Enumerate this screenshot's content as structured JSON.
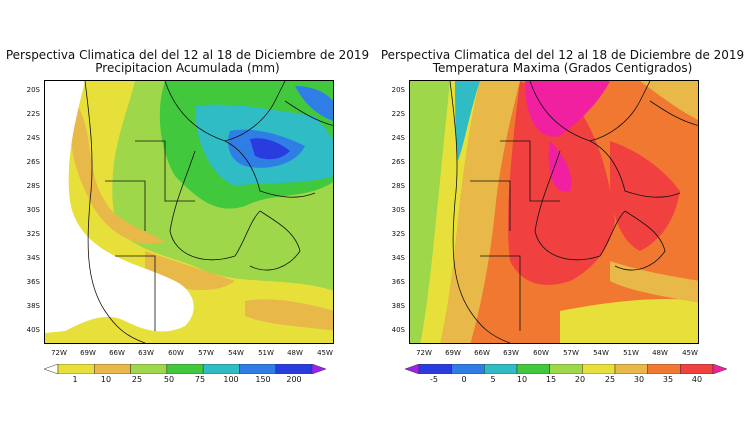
{
  "maps": [
    {
      "id": "precip",
      "title_line1": "Perspectiva Climatica del  del 12 al 18 de Diciembre de 2019",
      "title_line2": "Precipitacion Acumulada (mm)",
      "lat_labels": [
        "20S",
        "22S",
        "24S",
        "26S",
        "28S",
        "30S",
        "32S",
        "34S",
        "36S",
        "38S",
        "40S"
      ],
      "lon_labels": [
        "72W",
        "69W",
        "66W",
        "63W",
        "60W",
        "57W",
        "54W",
        "51W",
        "48W",
        "45W"
      ],
      "colorbar": {
        "labels": [
          "1",
          "10",
          "25",
          "50",
          "75",
          "100",
          "150",
          "200"
        ],
        "colors": [
          "#ffffff",
          "#e8e03a",
          "#e8b848",
          "#9ed84a",
          "#42c83c",
          "#30bcc4",
          "#2e7ee6",
          "#2a3ce0",
          "#a020f0"
        ]
      }
    },
    {
      "id": "tmax",
      "title_line1": "Perspectiva Climatica del  del 12 al 18 de Diciembre de 2019",
      "title_line2": "Temperatura Maxima (Grados Centigrados)",
      "lat_labels": [
        "20S",
        "22S",
        "24S",
        "26S",
        "28S",
        "30S",
        "32S",
        "34S",
        "36S",
        "38S",
        "40S"
      ],
      "lon_labels": [
        "72W",
        "69W",
        "66W",
        "63W",
        "60W",
        "57W",
        "54W",
        "51W",
        "48W",
        "45W"
      ],
      "colorbar": {
        "labels": [
          "-5",
          "0",
          "5",
          "10",
          "15",
          "20",
          "25",
          "30",
          "35",
          "40"
        ],
        "colors": [
          "#a020f0",
          "#2a3ce0",
          "#2e7ee6",
          "#30bcc4",
          "#42c83c",
          "#9ed84a",
          "#e8e03a",
          "#e8b848",
          "#f07830",
          "#f04040",
          "#f020a0"
        ]
      }
    }
  ]
}
